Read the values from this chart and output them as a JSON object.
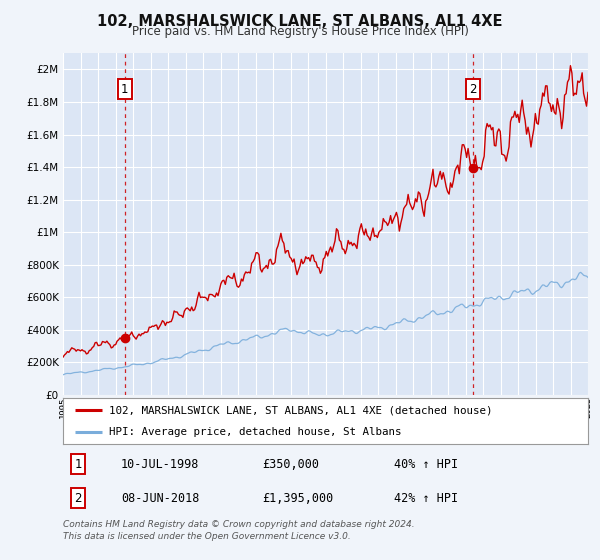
{
  "title": "102, MARSHALSWICK LANE, ST ALBANS, AL1 4XE",
  "subtitle": "Price paid vs. HM Land Registry's House Price Index (HPI)",
  "background_color": "#f0f4fa",
  "plot_background_color": "#dce6f5",
  "grid_color": "#ffffff",
  "house_color": "#cc0000",
  "hpi_color": "#7aaddb",
  "sale1_year": 1998.53,
  "sale1_price": 350000,
  "sale1_label": "1",
  "sale1_date": "10-JUL-1998",
  "sale2_year": 2018.44,
  "sale2_price": 1395000,
  "sale2_label": "2",
  "sale2_date": "08-JUN-2018",
  "legend_house": "102, MARSHALSWICK LANE, ST ALBANS, AL1 4XE (detached house)",
  "legend_hpi": "HPI: Average price, detached house, St Albans",
  "footnote1": "Contains HM Land Registry data © Crown copyright and database right 2024.",
  "footnote2": "This data is licensed under the Open Government Licence v3.0.",
  "ylim_max": 2100000,
  "xmin": 1995,
  "xmax": 2025
}
